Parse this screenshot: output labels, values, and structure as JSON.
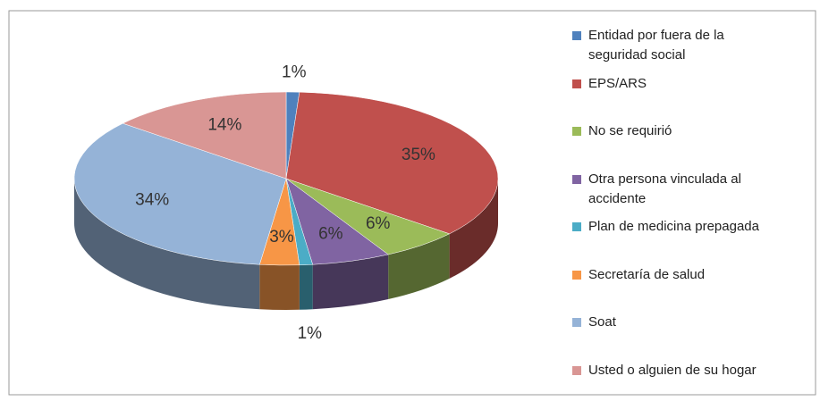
{
  "chart_data": {
    "type": "pie",
    "categories": [
      "Entidad por fuera de la seguridad social",
      "EPS/ARS",
      "No se requirió",
      "Otra persona vinculada al accidente",
      "Plan de medicina prepagada",
      "Secretaría de salud",
      "Soat",
      "Usted o alguien de su hogar"
    ],
    "values": [
      1,
      35,
      6,
      6,
      1,
      3,
      34,
      14
    ],
    "value_labels": [
      "1%",
      "35%",
      "6%",
      "6%",
      "1%",
      "3%",
      "34%",
      "14%"
    ],
    "colors": [
      "#4f81bd",
      "#c0504d",
      "#9bbb59",
      "#8064a2",
      "#4bacc6",
      "#f79646",
      "#95b3d7",
      "#d99694"
    ],
    "legend": "right"
  }
}
